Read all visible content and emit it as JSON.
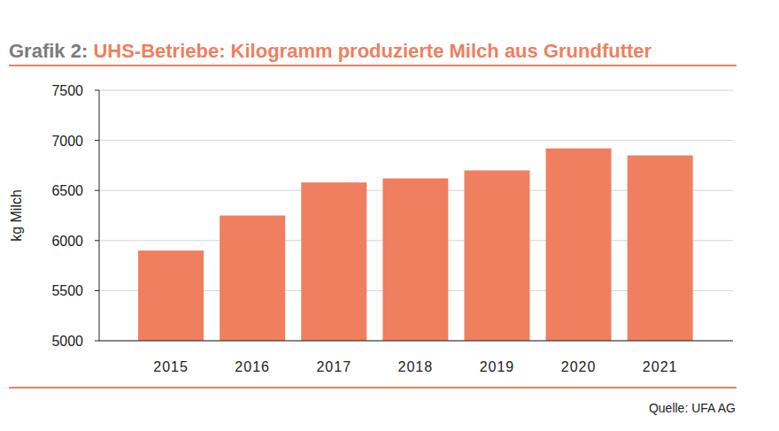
{
  "chart_data": {
    "type": "bar",
    "title": "Grafik 2: UHS-Betriebe: Kilogramm produzierte Milch aus Grundfutter",
    "y_label": "kg Milch",
    "categories": [
      "2015",
      "2016",
      "2017",
      "2018",
      "2019",
      "2020",
      "2021"
    ],
    "values": [
      5900,
      6250,
      6580,
      6620,
      6700,
      6920,
      6850
    ],
    "color": "#ef7f5e",
    "ylim": [
      5000,
      7500
    ],
    "yticks": [
      5000,
      5500,
      6000,
      6500,
      7000,
      7500
    ],
    "grid": true,
    "annotations": [
      "Quelle: UFA AG"
    ]
  }
}
